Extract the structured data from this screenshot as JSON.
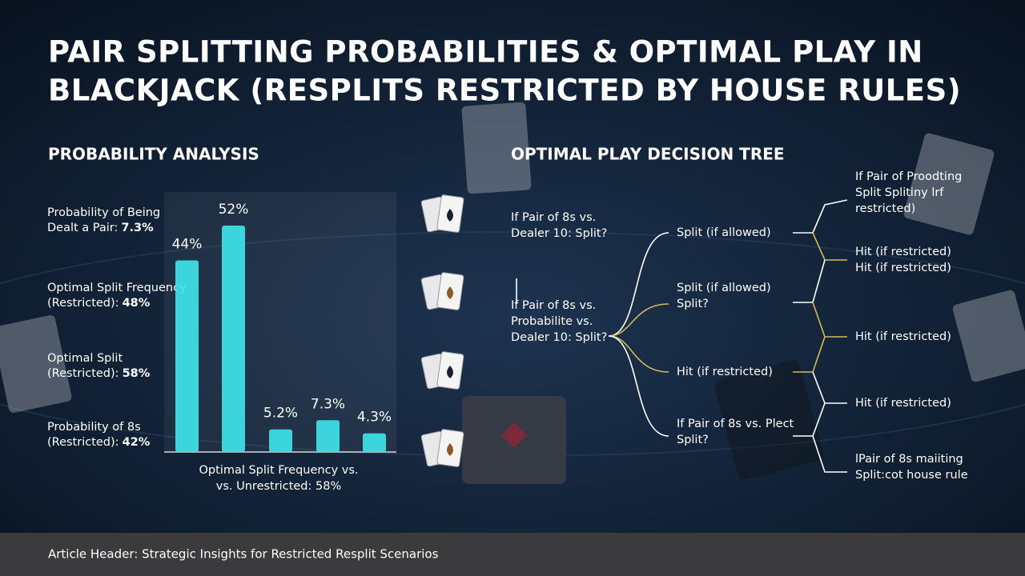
{
  "title": [
    "PAIR SPLITTING PROBABILITIES & OPTIMAL PLAY IN",
    "BLACKJACK (RESPLITS RESTRICTED BY HOUSE RULES)"
  ],
  "chart_data": {
    "type": "bar",
    "title": "PROBABILITY ANALYSIS",
    "values": [
      44,
      52,
      5.2,
      7.3,
      4.3
    ],
    "value_labels": [
      "44%",
      "52%",
      "5.2%",
      "7.3%",
      "4.3%"
    ],
    "color": "#3fe3ea",
    "caption": [
      "Optimal Split Frequency vs.",
      "vs. Unrestricted: 58%"
    ],
    "annotations": [
      {
        "lines": [
          "Probability of Being",
          "Dealt a Pair:"
        ],
        "value": "7.3%"
      },
      {
        "lines": [
          "Optimal Split Frequency",
          "(Restricted):"
        ],
        "value": "48%"
      },
      {
        "lines": [
          "Optimal Split",
          "(Restricted):"
        ],
        "value": "58%"
      },
      {
        "lines": [
          "Probability of 8s",
          "(Restricted):"
        ],
        "value": "42%"
      }
    ]
  },
  "tree": {
    "title": "OPTIMAL PLAY DECISION TREE",
    "nodes": [
      {
        "lines": [
          "If Pair of 8s vs.",
          "Dealer 10: Split?"
        ]
      },
      {
        "lines": [
          "If Pair of 8s vs.",
          "Probabilite vs.",
          "Dealer 10: Split?"
        ]
      },
      {
        "lines": [
          "Split (if allowed)"
        ]
      },
      {
        "lines": [
          "Split (if allowed)",
          "Split?"
        ]
      },
      {
        "lines": [
          "Hit (if restricted)"
        ]
      },
      {
        "lines": [
          "If Pair of 8s vs. Plect",
          "Split?"
        ]
      },
      {
        "lines": [
          "If Pair of Proodting",
          "Split Splitiny lrf",
          "restricted)"
        ]
      },
      {
        "lines": [
          "Hit (if restricted)",
          "Hit (if restricted)"
        ]
      },
      {
        "lines": [
          "Hit (if restricted)"
        ]
      },
      {
        "lines": [
          "Hit (if restricted)"
        ]
      },
      {
        "lines": [
          "lPair of 8s maiiting",
          "Split:cot house rule"
        ]
      }
    ]
  },
  "footer": "Article Header: Strategic Insights for Restricted Resplit Scenarios"
}
